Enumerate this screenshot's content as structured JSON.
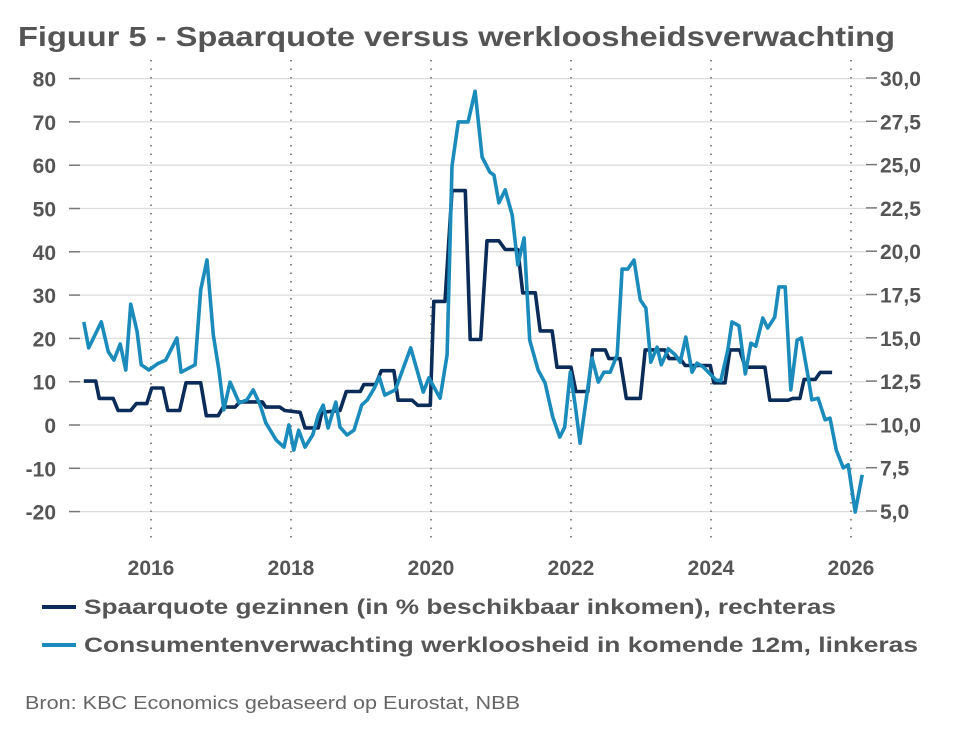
{
  "chart_data": {
    "type": "line",
    "title": "Figuur 5 - Spaarquote versus werkloosheidsverwachting",
    "source": "Bron: KBC Economics gebaseerd op Eurostat, NBB",
    "x_ticks": [
      "2016",
      "2018",
      "2020",
      "2022",
      "2024",
      "2026"
    ],
    "x_tick_values": [
      2016,
      2018,
      2020,
      2022,
      2024,
      2026
    ],
    "xlim": [
      2015,
      2026.25
    ],
    "left_axis": {
      "ylim": [
        -20,
        80
      ],
      "ticks": [
        "80",
        "70",
        "60",
        "50",
        "40",
        "30",
        "20",
        "10",
        "0",
        "-10",
        "-20"
      ],
      "tick_values": [
        80,
        70,
        60,
        50,
        40,
        30,
        20,
        10,
        0,
        -10,
        -20
      ]
    },
    "right_axis": {
      "ylim": [
        5,
        30
      ],
      "ticks": [
        "30,0",
        "27,5",
        "25,0",
        "22,5",
        "20,0",
        "17,5",
        "15,0",
        "12,5",
        "10,0",
        "7,5",
        "5,0"
      ],
      "tick_values": [
        30,
        27.5,
        25,
        22.5,
        20,
        17.5,
        15,
        12.5,
        10,
        7.5,
        5
      ]
    },
    "grid": "horizontal solid, vertical dotted at year ticks",
    "legend_position": "bottom",
    "series": [
      {
        "name": "Spaarquote gezinnen (in % beschikbaar inkomen), rechteras",
        "axis": "right",
        "color": "#0b2c58",
        "points": [
          [
            2015.04,
            12.5
          ],
          [
            2015.21,
            12.5
          ],
          [
            2015.26,
            11.5
          ],
          [
            2015.46,
            11.5
          ],
          [
            2015.53,
            10.8
          ],
          [
            2015.71,
            10.8
          ],
          [
            2015.79,
            11.2
          ],
          [
            2015.94,
            11.2
          ],
          [
            2016.01,
            12.1
          ],
          [
            2016.17,
            12.1
          ],
          [
            2016.24,
            10.8
          ],
          [
            2016.41,
            10.8
          ],
          [
            2016.5,
            12.4
          ],
          [
            2016.71,
            12.4
          ],
          [
            2016.79,
            10.5
          ],
          [
            2016.96,
            10.5
          ],
          [
            2017.03,
            11.0
          ],
          [
            2017.2,
            11.0
          ],
          [
            2017.27,
            11.3
          ],
          [
            2017.59,
            11.3
          ],
          [
            2017.64,
            11.0
          ],
          [
            2017.84,
            11.0
          ],
          [
            2017.91,
            10.8
          ],
          [
            2018.13,
            10.7
          ],
          [
            2018.2,
            9.8
          ],
          [
            2018.39,
            9.8
          ],
          [
            2018.44,
            10.7
          ],
          [
            2018.7,
            10.8
          ],
          [
            2018.79,
            11.9
          ],
          [
            2018.99,
            11.9
          ],
          [
            2019.04,
            12.3
          ],
          [
            2019.21,
            12.3
          ],
          [
            2019.29,
            13.1
          ],
          [
            2019.47,
            13.1
          ],
          [
            2019.53,
            11.4
          ],
          [
            2019.73,
            11.4
          ],
          [
            2019.81,
            11.1
          ],
          [
            2019.99,
            11.1
          ],
          [
            2020.04,
            17.1
          ],
          [
            2020.2,
            17.1
          ],
          [
            2020.3,
            23.5
          ],
          [
            2020.49,
            23.5
          ],
          [
            2020.56,
            14.9
          ],
          [
            2020.71,
            14.9
          ],
          [
            2020.8,
            20.6
          ],
          [
            2020.97,
            20.6
          ],
          [
            2021.06,
            20.1
          ],
          [
            2021.24,
            20.1
          ],
          [
            2021.31,
            17.6
          ],
          [
            2021.49,
            17.6
          ],
          [
            2021.56,
            15.4
          ],
          [
            2021.73,
            15.4
          ],
          [
            2021.8,
            13.3
          ],
          [
            2022.0,
            13.3
          ],
          [
            2022.07,
            11.9
          ],
          [
            2022.24,
            11.9
          ],
          [
            2022.31,
            14.3
          ],
          [
            2022.49,
            14.3
          ],
          [
            2022.54,
            13.8
          ],
          [
            2022.7,
            13.8
          ],
          [
            2022.79,
            11.5
          ],
          [
            2022.99,
            11.5
          ],
          [
            2023.06,
            14.3
          ],
          [
            2023.34,
            14.3
          ],
          [
            2023.4,
            13.8
          ],
          [
            2023.56,
            13.8
          ],
          [
            2023.63,
            13.4
          ],
          [
            2023.99,
            13.4
          ],
          [
            2024.04,
            12.4
          ],
          [
            2024.2,
            12.4
          ],
          [
            2024.27,
            14.3
          ],
          [
            2024.41,
            14.3
          ],
          [
            2024.49,
            13.3
          ],
          [
            2024.77,
            13.3
          ],
          [
            2024.84,
            11.4
          ],
          [
            2025.1,
            11.4
          ],
          [
            2025.17,
            11.5
          ],
          [
            2025.27,
            11.5
          ],
          [
            2025.33,
            12.6
          ],
          [
            2025.49,
            12.6
          ],
          [
            2025.56,
            13.0
          ],
          [
            2025.73,
            13.0
          ]
        ]
      },
      {
        "name": "Consumentenverwachting werkloosheid in komende 12m, linkeras",
        "axis": "left",
        "color": "#1a8bbb",
        "points": [
          [
            2015.04,
            23.8
          ],
          [
            2015.11,
            17.8
          ],
          [
            2015.29,
            23.8
          ],
          [
            2015.39,
            16.9
          ],
          [
            2015.47,
            15
          ],
          [
            2015.56,
            18.7
          ],
          [
            2015.64,
            12.7
          ],
          [
            2015.71,
            27.9
          ],
          [
            2015.8,
            21.7
          ],
          [
            2015.86,
            13.9
          ],
          [
            2015.97,
            12.7
          ],
          [
            2016.09,
            14.1
          ],
          [
            2016.21,
            15
          ],
          [
            2016.37,
            20.1
          ],
          [
            2016.43,
            12.2
          ],
          [
            2016.63,
            13.9
          ],
          [
            2016.71,
            31.2
          ],
          [
            2016.8,
            38.1
          ],
          [
            2016.89,
            20.8
          ],
          [
            2016.97,
            12.7
          ],
          [
            2017.04,
            3.5
          ],
          [
            2017.13,
            9.9
          ],
          [
            2017.26,
            5.1
          ],
          [
            2017.37,
            5.8
          ],
          [
            2017.46,
            8.1
          ],
          [
            2017.56,
            4.6
          ],
          [
            2017.64,
            0.5
          ],
          [
            2017.79,
            -3.5
          ],
          [
            2017.9,
            -5.1
          ],
          [
            2017.97,
            0
          ],
          [
            2018.04,
            -5.8
          ],
          [
            2018.11,
            -1.2
          ],
          [
            2018.2,
            -5.1
          ],
          [
            2018.31,
            -2.3
          ],
          [
            2018.39,
            2.3
          ],
          [
            2018.46,
            4.6
          ],
          [
            2018.53,
            -0.7
          ],
          [
            2018.64,
            5.3
          ],
          [
            2018.7,
            -0.5
          ],
          [
            2018.8,
            -2.3
          ],
          [
            2018.9,
            -1.2
          ],
          [
            2019.01,
            4.6
          ],
          [
            2019.09,
            5.8
          ],
          [
            2019.19,
            8.5
          ],
          [
            2019.26,
            11.1
          ],
          [
            2019.34,
            6.9
          ],
          [
            2019.49,
            8.1
          ],
          [
            2019.71,
            17.8
          ],
          [
            2019.89,
            7.6
          ],
          [
            2019.97,
            10.9
          ],
          [
            2020.13,
            6.2
          ],
          [
            2020.23,
            16.2
          ],
          [
            2020.3,
            59.8
          ],
          [
            2020.39,
            70
          ],
          [
            2020.53,
            70
          ],
          [
            2020.63,
            77.1
          ],
          [
            2020.73,
            61.9
          ],
          [
            2020.84,
            58.4
          ],
          [
            2020.9,
            57.7
          ],
          [
            2020.97,
            51.3
          ],
          [
            2021.06,
            54.3
          ],
          [
            2021.16,
            48.5
          ],
          [
            2021.24,
            37
          ],
          [
            2021.33,
            43.2
          ],
          [
            2021.41,
            19.6
          ],
          [
            2021.53,
            12.7
          ],
          [
            2021.63,
            9.7
          ],
          [
            2021.74,
            1.8
          ],
          [
            2021.84,
            -2.8
          ],
          [
            2021.91,
            -0.5
          ],
          [
            2021.99,
            12.2
          ],
          [
            2022.06,
            4.6
          ],
          [
            2022.13,
            -4.2
          ],
          [
            2022.3,
            15.5
          ],
          [
            2022.39,
            9.9
          ],
          [
            2022.47,
            12.2
          ],
          [
            2022.56,
            12.2
          ],
          [
            2022.66,
            16.2
          ],
          [
            2022.73,
            36
          ],
          [
            2022.81,
            36
          ],
          [
            2022.9,
            38.1
          ],
          [
            2022.99,
            28.9
          ],
          [
            2023.07,
            27
          ],
          [
            2023.14,
            14.5
          ],
          [
            2023.23,
            18
          ],
          [
            2023.29,
            13.9
          ],
          [
            2023.39,
            17.6
          ],
          [
            2023.49,
            16.2
          ],
          [
            2023.56,
            14.5
          ],
          [
            2023.64,
            20.3
          ],
          [
            2023.73,
            12.2
          ],
          [
            2023.8,
            14.3
          ],
          [
            2023.89,
            13.4
          ],
          [
            2024.07,
            10.4
          ],
          [
            2024.14,
            10.2
          ],
          [
            2024.24,
            17.3
          ],
          [
            2024.3,
            23.8
          ],
          [
            2024.4,
            22.9
          ],
          [
            2024.49,
            11.8
          ],
          [
            2024.57,
            18.9
          ],
          [
            2024.64,
            18.2
          ],
          [
            2024.74,
            24.7
          ],
          [
            2024.81,
            22.4
          ],
          [
            2024.91,
            24.9
          ],
          [
            2024.97,
            31.9
          ],
          [
            2025.06,
            31.9
          ],
          [
            2025.14,
            8.1
          ],
          [
            2025.23,
            19.6
          ],
          [
            2025.29,
            20.1
          ],
          [
            2025.39,
            10.9
          ],
          [
            2025.44,
            5.8
          ],
          [
            2025.53,
            6.2
          ],
          [
            2025.63,
            1.2
          ],
          [
            2025.7,
            1.6
          ],
          [
            2025.79,
            -5.8
          ],
          [
            2025.89,
            -9.9
          ],
          [
            2025.96,
            -9.2
          ],
          [
            2026.06,
            -20.1
          ],
          [
            2026.16,
            -11.5
          ]
        ]
      }
    ]
  }
}
